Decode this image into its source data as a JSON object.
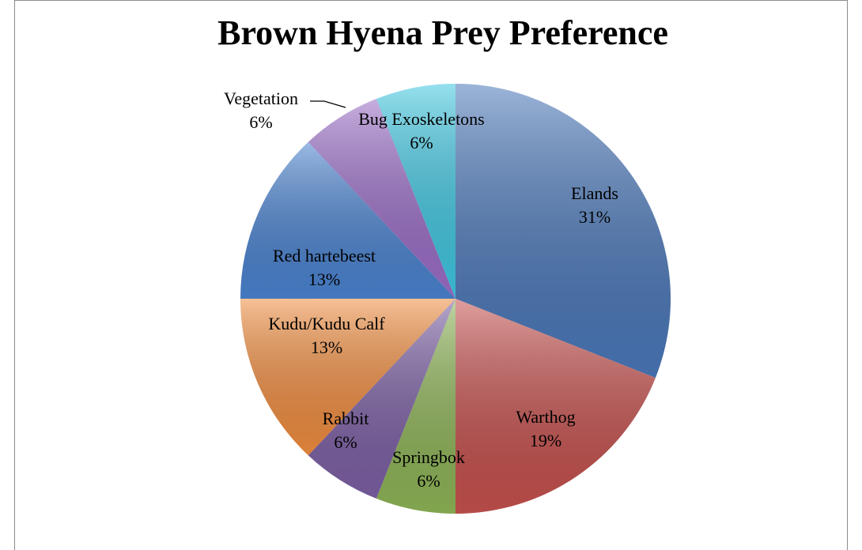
{
  "chart_data": {
    "type": "pie",
    "title": "Brown Hyena Prey Preference",
    "categories": [
      "Elands",
      "Warthog",
      "Springbok",
      "Rabbit",
      "Kudu/Kudu Calf",
      "Red hartebeest",
      "Vegetation",
      "Bug Exoskeletons"
    ],
    "values": [
      31,
      19,
      6,
      6,
      13,
      13,
      6,
      6
    ],
    "value_labels": [
      "31%",
      "19%",
      "6%",
      "6%",
      "13%",
      "13%",
      "6%",
      "6%"
    ],
    "colors": [
      "#4a77b8",
      "#c4504d",
      "#8db356",
      "#7b5fa3",
      "#ef8c3f",
      "#4a82cf",
      "#9a6dc6",
      "#3fc6e0"
    ]
  }
}
